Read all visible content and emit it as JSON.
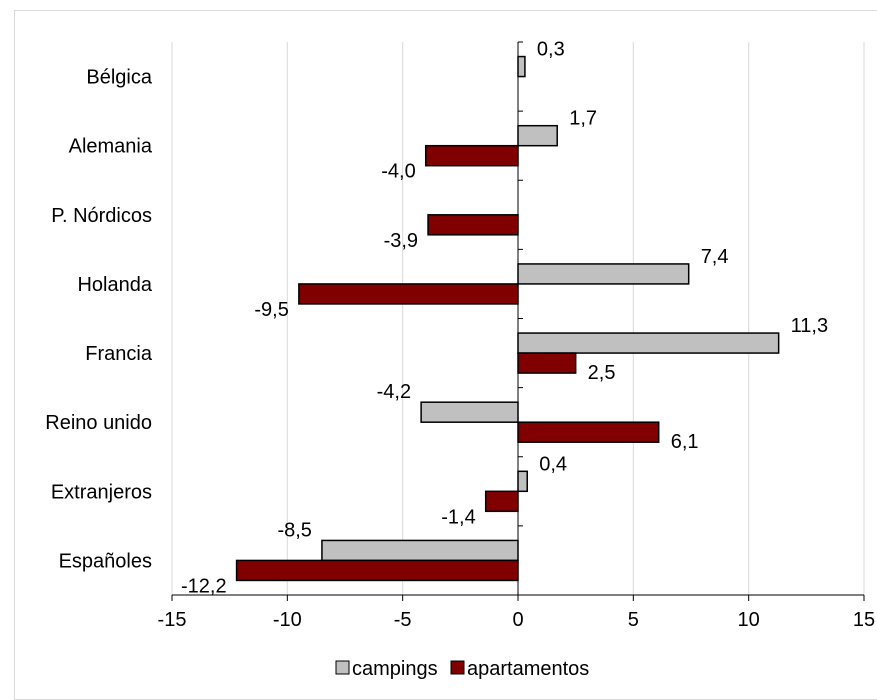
{
  "chart_data": {
    "type": "bar",
    "orientation": "horizontal",
    "categories": [
      "Bélgica",
      "Alemania",
      "P. Nórdicos",
      "Holanda",
      "Francia",
      "Reino unido",
      "Extranjeros",
      "Españoles"
    ],
    "series": [
      {
        "name": "campings",
        "color": "#c0c0c0",
        "values": [
          0.3,
          1.7,
          null,
          7.4,
          11.3,
          -4.2,
          0.4,
          -8.5
        ],
        "labels": [
          "0,3",
          "1,7",
          "",
          "7,4",
          "11,3",
          "-4,2",
          "0,4",
          "-8,5"
        ]
      },
      {
        "name": "apartamentos",
        "color": "#800000",
        "values": [
          null,
          -4.0,
          -3.9,
          -9.5,
          2.5,
          6.1,
          -1.4,
          -12.2
        ],
        "labels": [
          "",
          "-4,0",
          "-3,9",
          "-9,5",
          "2,5",
          "6,1",
          "-1,4",
          "-12,2"
        ]
      }
    ],
    "xlim": [
      -15,
      15
    ],
    "xticks": [
      -15,
      -10,
      -5,
      0,
      5,
      10,
      15
    ],
    "xtick_labels": [
      "-15",
      "-10",
      "-5",
      "0",
      "5",
      "10",
      "15"
    ],
    "grid": "vertical",
    "legend": "bottom",
    "title": "",
    "xlabel": "",
    "ylabel": ""
  }
}
